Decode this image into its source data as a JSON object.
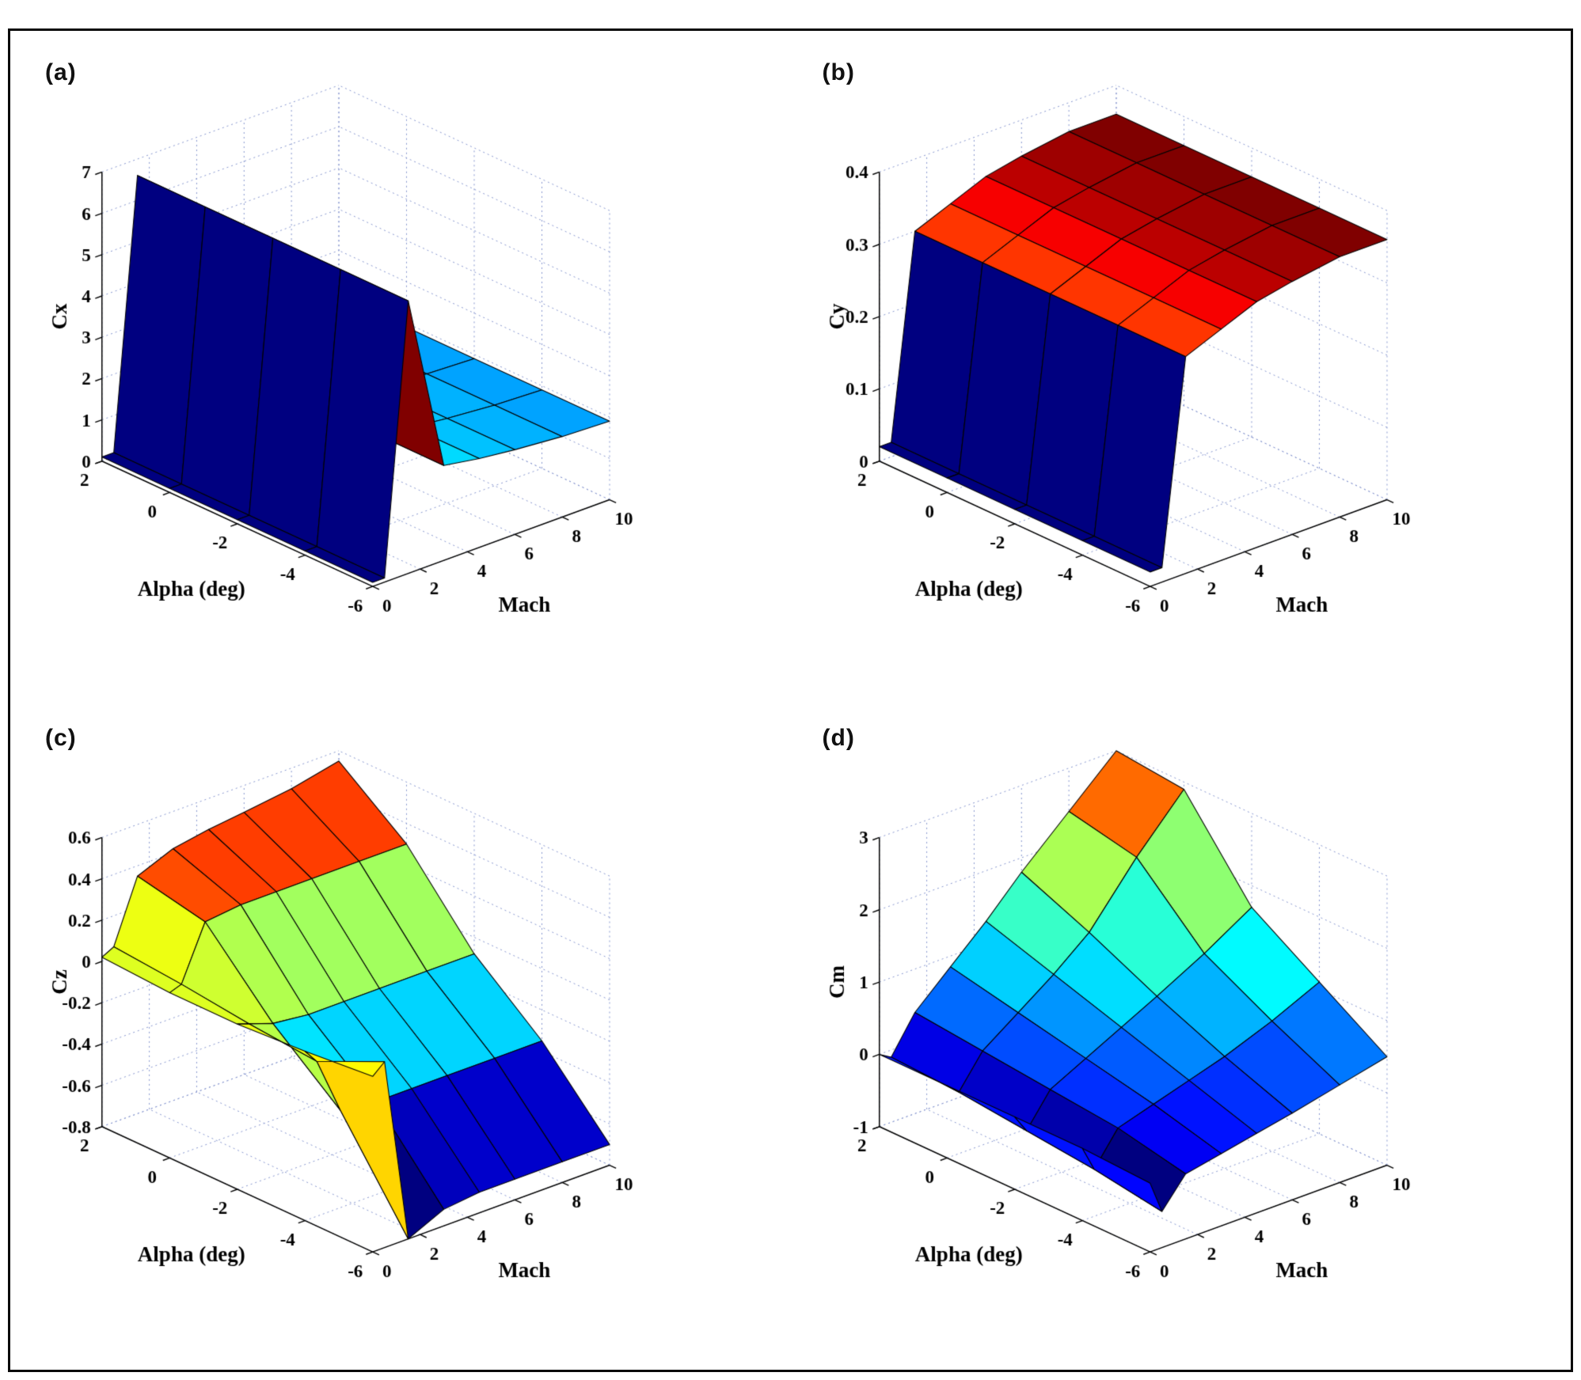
{
  "figure": {
    "background": "#ffffff",
    "border_color": "#0a0a0a",
    "grid_color": "#8494cd",
    "view": "3d surface, azimuth -37.5 elevation 30, MATLAB-style"
  },
  "chart_data": [
    {
      "type": "surface",
      "panel_label": "(a)",
      "zlabel": "Cx",
      "xlabel": "Mach",
      "ylabel": "Alpha (deg)",
      "colormap": "jet",
      "grid": true,
      "mach_values": [
        0,
        0.5,
        1.5,
        3,
        4.5,
        6,
        8,
        10
      ],
      "alpha_values": [
        -6,
        -4,
        -2,
        0,
        2
      ],
      "z": [
        [
          0.1,
          0.1,
          6.6,
          2.3,
          2.15,
          2.05,
          1.95,
          1.9
        ],
        [
          0.1,
          0.1,
          6.6,
          2.3,
          2.15,
          2.05,
          1.95,
          1.9
        ],
        [
          0.1,
          0.1,
          6.6,
          2.3,
          2.15,
          2.05,
          1.95,
          1.9
        ],
        [
          0.1,
          0.1,
          6.6,
          2.3,
          2.15,
          2.05,
          1.95,
          1.9
        ],
        [
          0.1,
          0.1,
          6.6,
          2.3,
          2.15,
          2.05,
          1.95,
          1.9
        ]
      ],
      "zlim": [
        0,
        7
      ],
      "zticks": [
        0,
        1,
        2,
        3,
        4,
        5,
        6,
        7
      ],
      "mach_ticks": [
        0,
        2,
        4,
        6,
        8,
        10
      ],
      "alpha_ticks": [
        2,
        0,
        -2,
        -4,
        -6
      ]
    },
    {
      "type": "surface",
      "panel_label": "(b)",
      "zlabel": "Cy",
      "xlabel": "Mach",
      "ylabel": "Alpha (deg)",
      "colormap": "jet",
      "grid": true,
      "mach_values": [
        0,
        0.5,
        1.5,
        3,
        4.5,
        6,
        8,
        10
      ],
      "alpha_values": [
        -6,
        -4,
        -2,
        0,
        2
      ],
      "z": [
        [
          0.02,
          0.02,
          0.3,
          0.32,
          0.34,
          0.35,
          0.36,
          0.36
        ],
        [
          0.02,
          0.02,
          0.3,
          0.32,
          0.34,
          0.35,
          0.36,
          0.36
        ],
        [
          0.02,
          0.02,
          0.3,
          0.32,
          0.34,
          0.35,
          0.36,
          0.36
        ],
        [
          0.02,
          0.02,
          0.3,
          0.32,
          0.34,
          0.35,
          0.36,
          0.36
        ],
        [
          0.02,
          0.02,
          0.3,
          0.32,
          0.34,
          0.35,
          0.36,
          0.36
        ]
      ],
      "zlim": [
        0,
        0.4
      ],
      "zticks": [
        0,
        0.1,
        0.2,
        0.3,
        0.4
      ],
      "mach_ticks": [
        0,
        2,
        4,
        6,
        8,
        10
      ],
      "alpha_ticks": [
        2,
        0,
        -2,
        -4,
        -6
      ]
    },
    {
      "type": "surface",
      "panel_label": "(c)",
      "zlabel": "Cz",
      "xlabel": "Mach",
      "ylabel": "Alpha (deg)",
      "colormap": "jet",
      "grid": true,
      "mach_values": [
        0,
        0.5,
        1.5,
        3,
        4.5,
        6,
        8,
        10
      ],
      "alpha_values": [
        -6,
        -4,
        -2,
        0,
        2
      ],
      "z": [
        [
          0.05,
          0.1,
          -0.8,
          -0.72,
          -0.7,
          -0.7,
          -0.7,
          -0.7
        ],
        [
          0.02,
          -0.05,
          -0.33,
          -0.35,
          -0.35,
          -0.35,
          -0.35,
          -0.35
        ],
        [
          0.0,
          -0.02,
          -0.06,
          -0.08,
          -0.08,
          -0.08,
          -0.08,
          -0.08
        ],
        [
          0.0,
          0.02,
          0.28,
          0.3,
          0.3,
          0.3,
          0.3,
          0.3
        ],
        [
          0.02,
          0.05,
          0.35,
          0.42,
          0.45,
          0.47,
          0.5,
          0.55
        ]
      ],
      "zlim": [
        -0.8,
        0.6
      ],
      "zticks": [
        -0.8,
        -0.6,
        -0.4,
        -0.2,
        0,
        0.2,
        0.4,
        0.6
      ],
      "mach_ticks": [
        0,
        2,
        4,
        6,
        8,
        10
      ],
      "alpha_ticks": [
        2,
        0,
        -2,
        -4,
        -6
      ]
    },
    {
      "type": "surface",
      "panel_label": "(d)",
      "zlabel": "Cm",
      "xlabel": "Mach",
      "ylabel": "Alpha (deg)",
      "colormap": "jet",
      "grid": true,
      "mach_values": [
        0,
        0.5,
        1.5,
        3,
        4.5,
        6,
        8,
        10
      ],
      "alpha_values": [
        -6,
        -4,
        -2,
        0,
        2
      ],
      "z": [
        [
          -0.05,
          -0.5,
          -0.1,
          0.0,
          0.1,
          0.2,
          0.35,
          0.5
        ],
        [
          0.0,
          -0.35,
          0.1,
          0.25,
          0.4,
          0.55,
          0.8,
          1.1
        ],
        [
          0.0,
          -0.25,
          0.2,
          0.45,
          0.7,
          0.95,
          1.3,
          1.7
        ],
        [
          0.0,
          -0.15,
          0.3,
          0.65,
          1.0,
          1.4,
          2.2,
          2.9
        ],
        [
          0.0,
          -0.1,
          0.4,
          0.85,
          1.3,
          1.8,
          2.4,
          3.0
        ]
      ],
      "zlim": [
        -1,
        3
      ],
      "zticks": [
        -1,
        0,
        1,
        2,
        3
      ],
      "mach_ticks": [
        0,
        2,
        4,
        6,
        8,
        10
      ],
      "alpha_ticks": [
        2,
        0,
        -2,
        -4,
        -6
      ]
    }
  ]
}
